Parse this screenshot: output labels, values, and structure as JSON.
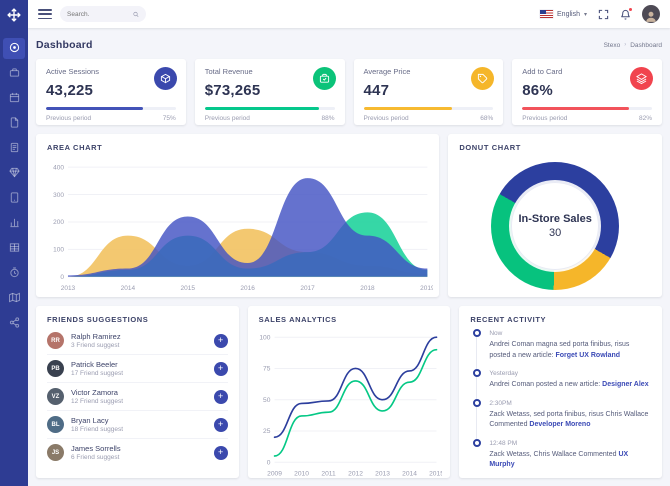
{
  "app": {
    "name": "Stexo"
  },
  "colors": {
    "sidebar": "#2e3c93",
    "primary": "#3b49ad",
    "green": "#0bc379",
    "yellow": "#f5b62a",
    "red": "#f1444e",
    "page_bg": "#f4f5fa",
    "link": "#3b4ab6"
  },
  "topbar": {
    "search_placeholder": "Search.",
    "language": "English"
  },
  "header": {
    "title": "Dashboard",
    "breadcrumb": {
      "home": "Stexo",
      "current": "Dashboard",
      "separator": "›"
    }
  },
  "stats": [
    {
      "label": "Active Sessions",
      "value": "43,225",
      "icon": "box-icon",
      "color": "#3b49ad",
      "bar_color": "#4353b8",
      "progress_pct": 75,
      "foot_label": "Previous period",
      "pct_label": "75%"
    },
    {
      "label": "Total Revenue",
      "value": "$73,265",
      "icon": "briefcase-icon",
      "color": "#0bc379",
      "bar_color": "#05c88c",
      "progress_pct": 88,
      "foot_label": "Previous period",
      "pct_label": "88%"
    },
    {
      "label": "Average Price",
      "value": "447",
      "icon": "tag-icon",
      "color": "#f5b62a",
      "bar_color": "#f7ba31",
      "progress_pct": 68,
      "foot_label": "Previous period",
      "pct_label": "68%"
    },
    {
      "label": "Add to Card",
      "value": "86%",
      "icon": "layers-icon",
      "color": "#f1444e",
      "bar_color": "#f2535b",
      "progress_pct": 82,
      "foot_label": "Previous period",
      "pct_label": "82%"
    }
  ],
  "panels": {
    "area_title": "Area Chart",
    "donut_title": "Donut Chart",
    "friends_title": "Friends Suggestions",
    "sales_title": "Sales Analytics",
    "activity_title": "Recent Activity"
  },
  "chart_data": [
    {
      "type": "area",
      "title": "Area Chart",
      "x": [
        2013,
        2014,
        2015,
        2016,
        2017,
        2018,
        2019
      ],
      "ylim": [
        0,
        400
      ],
      "yticks": [
        0,
        100,
        200,
        300,
        400
      ],
      "grid": true,
      "legend": "none",
      "series": [
        {
          "name": "yellow",
          "color": "#f2c261",
          "opacity": 0.9,
          "values": [
            0,
            150,
            40,
            175,
            90,
            40,
            10
          ]
        },
        {
          "name": "green",
          "color": "#20d39c",
          "opacity": 0.9,
          "values": [
            0,
            25,
            150,
            30,
            90,
            235,
            25
          ]
        },
        {
          "name": "blue",
          "color": "#4353c3",
          "opacity": 0.82,
          "values": [
            5,
            30,
            220,
            50,
            360,
            150,
            30
          ]
        }
      ]
    },
    {
      "type": "pie",
      "title": "Donut Chart",
      "rotation": -60,
      "center_title": "In-Store Sales",
      "center_value": "30",
      "segments": [
        {
          "name": "blue",
          "color": "#2c3f9f",
          "value": 50
        },
        {
          "name": "yellow",
          "color": "#f5b62a",
          "value": 17
        },
        {
          "name": "green",
          "color": "#07c27e",
          "value": 33
        }
      ]
    },
    {
      "type": "line",
      "title": "Sales Analytics",
      "x": [
        2009,
        2010,
        2011,
        2012,
        2013,
        2014,
        2015
      ],
      "ylim": [
        0,
        100
      ],
      "yticks": [
        0,
        25,
        50,
        75,
        100
      ],
      "grid": true,
      "series": [
        {
          "name": "navy",
          "color": "#2c3e9d",
          "values": [
            20,
            47,
            49,
            75,
            50,
            73,
            100
          ]
        },
        {
          "name": "green",
          "color": "#04c885",
          "values": [
            5,
            37,
            40,
            65,
            41,
            64,
            90
          ]
        }
      ]
    }
  ],
  "friends": [
    {
      "name": "Ralph Ramirez",
      "sub": "3 Friend suggest",
      "initials": "RR",
      "avatar_color": "#b5746a",
      "add_label": "+"
    },
    {
      "name": "Patrick Beeler",
      "sub": "17 Friend suggest",
      "initials": "PB",
      "avatar_color": "#39414f",
      "add_label": "+"
    },
    {
      "name": "Victor Zamora",
      "sub": "12 Friend suggest",
      "initials": "VZ",
      "avatar_color": "#55606e",
      "add_label": "+"
    },
    {
      "name": "Bryan Lacy",
      "sub": "18 Friend suggest",
      "initials": "BL",
      "avatar_color": "#4f6c86",
      "add_label": "+"
    },
    {
      "name": "James Sorrells",
      "sub": "6 Friend suggest",
      "initials": "JS",
      "avatar_color": "#8a7a68",
      "add_label": "+"
    }
  ],
  "activity": [
    {
      "time": "Now",
      "text": "Andrei Coman magna sed porta finibus, risus posted a new article: ",
      "link": "Forget UX Rowland"
    },
    {
      "time": "Yesterday",
      "text": "Andrei Coman posted a new article: ",
      "link": "Designer Alex"
    },
    {
      "time": "2:30PM",
      "text": "Zack Wetass, sed porta finibus, risus Chris Wallace Commented ",
      "link": "Developer Moreno"
    },
    {
      "time": "12:48 PM",
      "text": "Zack Wetass, Chris Wallace Commented ",
      "link": "UX Murphy"
    }
  ],
  "sidebar": {
    "items": [
      {
        "icon": "target-icon",
        "active": true
      },
      {
        "icon": "briefcase-icon",
        "active": false
      },
      {
        "icon": "calendar-icon",
        "active": false
      },
      {
        "icon": "file-icon",
        "active": false
      },
      {
        "icon": "document-icon",
        "active": false
      },
      {
        "icon": "gem-icon",
        "active": false
      },
      {
        "icon": "tablet-icon",
        "active": false
      },
      {
        "icon": "bar-chart-icon",
        "active": false
      },
      {
        "icon": "grid-icon",
        "active": false
      },
      {
        "icon": "clock-icon",
        "active": false
      },
      {
        "icon": "map-icon",
        "active": false
      },
      {
        "icon": "share-icon",
        "active": false
      }
    ]
  }
}
